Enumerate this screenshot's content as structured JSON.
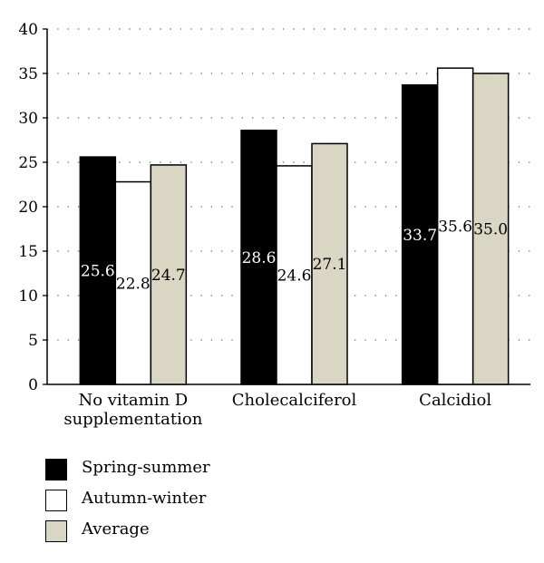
{
  "chart_data": {
    "type": "bar",
    "categories": [
      [
        "No vitamin D",
        "supplementation"
      ],
      [
        "Cholecalciferol"
      ],
      [
        "Calcidiol"
      ]
    ],
    "series": [
      {
        "name": "Spring-summer",
        "values": [
          25.6,
          28.6,
          33.7
        ],
        "color": "#000000"
      },
      {
        "name": "Autumn-winter",
        "values": [
          22.8,
          24.6,
          35.6
        ],
        "color": "#ffffff"
      },
      {
        "name": "Average",
        "values": [
          24.7,
          27.1,
          35.0
        ],
        "color": "#d9d6c3"
      }
    ],
    "data_labels": [
      [
        "25.6",
        "28.6",
        "33.7"
      ],
      [
        "22.8",
        "24.6",
        "35.6"
      ],
      [
        "24.7",
        "27.1",
        "35.0"
      ]
    ],
    "ylim": [
      0,
      40
    ],
    "yticks": [
      0,
      5,
      10,
      15,
      20,
      25,
      30,
      35,
      40
    ],
    "grid": "horizontal dotted",
    "legend_position": "bottom-left"
  }
}
